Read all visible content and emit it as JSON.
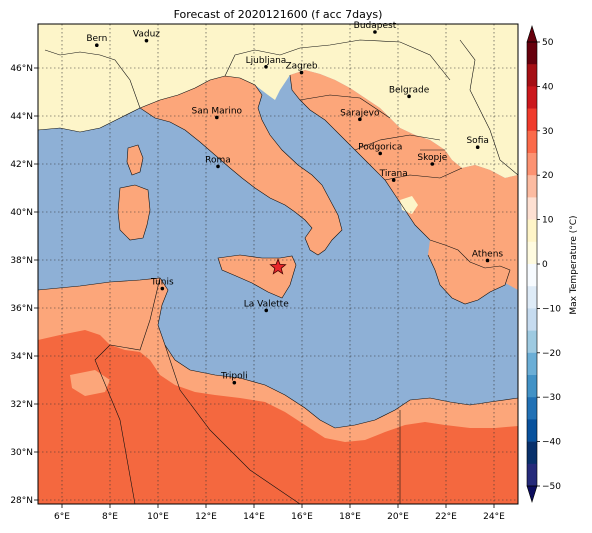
{
  "title": "Forecast of 2020121600 (f acc 7days)",
  "map": {
    "lon_ticks": [
      "6°E",
      "8°E",
      "10°E",
      "12°E",
      "14°E",
      "16°E",
      "18°E",
      "20°E",
      "22°E",
      "24°E"
    ],
    "lat_ticks": [
      "28°N",
      "30°N",
      "32°N",
      "34°N",
      "36°N",
      "38°N",
      "40°N",
      "42°N",
      "44°N",
      "46°N"
    ],
    "cities": [
      {
        "name": "Bern",
        "lon": 7.45,
        "lat": 46.95
      },
      {
        "name": "Vaduz",
        "lon": 9.52,
        "lat": 47.14
      },
      {
        "name": "Budapest",
        "lon": 19.04,
        "lat": 47.5
      },
      {
        "name": "Ljubljana",
        "lon": 14.5,
        "lat": 46.05
      },
      {
        "name": "Zagreb",
        "lon": 15.98,
        "lat": 45.81
      },
      {
        "name": "Belgrade",
        "lon": 20.46,
        "lat": 44.82
      },
      {
        "name": "San Marino",
        "lon": 12.45,
        "lat": 43.94
      },
      {
        "name": "Sarajevo",
        "lon": 18.41,
        "lat": 43.86
      },
      {
        "name": "Sofia",
        "lon": 23.32,
        "lat": 42.7
      },
      {
        "name": "Roma",
        "lon": 12.5,
        "lat": 41.9
      },
      {
        "name": "Podgorica",
        "lon": 19.26,
        "lat": 42.44
      },
      {
        "name": "Skopje",
        "lon": 21.43,
        "lat": 42.0
      },
      {
        "name": "Tirana",
        "lon": 19.82,
        "lat": 41.33
      },
      {
        "name": "Athens",
        "lon": 23.73,
        "lat": 37.98
      },
      {
        "name": "Tunis",
        "lon": 10.18,
        "lat": 36.81
      },
      {
        "name": "La Valette",
        "lon": 14.51,
        "lat": 35.9
      },
      {
        "name": "Tripoli",
        "lon": 13.18,
        "lat": 32.89
      }
    ],
    "marker": {
      "name": "star",
      "lon": 15.0,
      "lat": 37.7,
      "color": "#e8262a"
    }
  },
  "colorbar": {
    "label": "Max Temperature (°C)",
    "ticks": [
      "50",
      "40",
      "30",
      "20",
      "10",
      "0",
      "−10",
      "−20",
      "−30",
      "−40",
      "−50"
    ],
    "colors": [
      "#67000d",
      "#a50f15",
      "#cb181d",
      "#ef3b2c",
      "#fb6a4a",
      "#fc9272",
      "#fcbba1",
      "#fee0d2",
      "#fff5c8",
      "#fffbe0",
      "#f7fbff",
      "#deebf7",
      "#c6dbef",
      "#9ecae1",
      "#6baed6",
      "#4292c6",
      "#2171b5",
      "#08519c",
      "#08306b",
      "#252a7a"
    ]
  },
  "colors": {
    "sea": "#8eb0d6",
    "land_cold": "#fdf5c9",
    "land_mild": "#fca67a",
    "land_warm": "#f4683f"
  }
}
